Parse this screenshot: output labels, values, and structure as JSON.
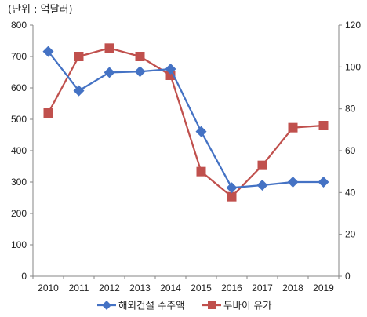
{
  "chart_data": {
    "type": "line",
    "unit_label": "(단위 : 억달러)",
    "categories": [
      "2010",
      "2011",
      "2012",
      "2013",
      "2014",
      "2015",
      "2016",
      "2017",
      "2018",
      "2019"
    ],
    "y_left": {
      "range": [
        0,
        800
      ],
      "ticks": [
        "0",
        "100",
        "200",
        "300",
        "400",
        "500",
        "600",
        "700",
        "800"
      ]
    },
    "y_right": {
      "range": [
        0,
        120
      ],
      "ticks": [
        "0",
        "20",
        "40",
        "60",
        "80",
        "100",
        "120"
      ]
    },
    "grid": false,
    "legend_position": "bottom",
    "series": [
      {
        "name": "해외건설 수주액",
        "axis": "left",
        "marker": "diamond",
        "color": "#4472C4",
        "values": [
          716,
          591,
          649,
          652,
          660,
          461,
          282,
          290,
          300,
          300
        ]
      },
      {
        "name": "두바이 유가",
        "axis": "right",
        "marker": "square",
        "color": "#C0504D",
        "values": [
          78,
          105,
          109,
          105,
          96,
          50,
          38,
          53,
          71,
          72
        ]
      }
    ]
  }
}
